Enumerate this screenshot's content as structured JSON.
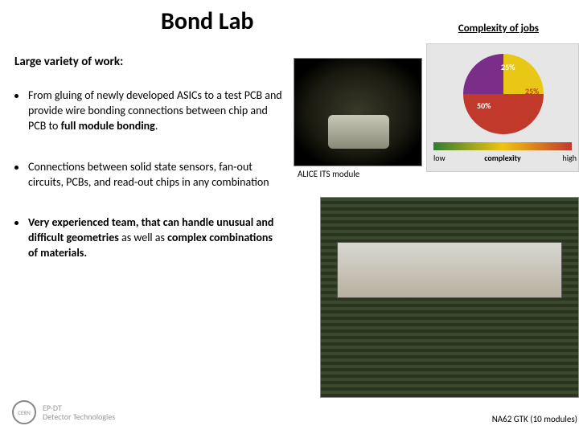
{
  "title": "Bond Lab",
  "subtitle": "Large variety of work:",
  "chart": {
    "title": "Complexity of jobs",
    "type": "pie",
    "slices": [
      {
        "label": "25%",
        "value": 25,
        "color": "#7a2e8a"
      },
      {
        "label": "25%",
        "value": 25,
        "color": "#e8c814"
      },
      {
        "label": "50%",
        "value": 50,
        "color": "#c0392b"
      }
    ],
    "background_color": "#e6e6e6",
    "label_color": "#ffffff",
    "label_fontsize": 10,
    "axis": {
      "low": "low",
      "mid": "complexity",
      "high": "high",
      "gradient_colors": [
        "#2e7d32",
        "#f1c40f",
        "#c0392b"
      ]
    }
  },
  "bullets": [
    "From gluing of newly developed ASICs to a test PCB and provide wire bonding connections between chip and PCB to <b>full module bonding</b>.",
    "Connections between solid state sensors, fan-out circuits, PCBs, and read-out chips in any combination",
    "<b>Very experienced team, that can handle unusual and difficult geometries</b> as well as <b>complex combinations of materials.</b>"
  ],
  "images": {
    "top_caption": "ALICE ITS module",
    "bottom_caption": "NA62 GTK (10 modules)"
  },
  "footer": {
    "org": "CERN",
    "dept1": "EP-DT",
    "dept2": "Detector Technologies"
  }
}
